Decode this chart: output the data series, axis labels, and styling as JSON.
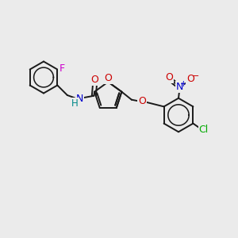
{
  "bg_color": "#ebebeb",
  "atom_colors": {
    "F": "#cc00cc",
    "N_amine": "#0000cc",
    "H": "#008888",
    "O": "#cc0000",
    "N_nitro": "#0000cc",
    "Cl": "#00aa00"
  },
  "bond_color": "#1a1a1a",
  "bond_lw": 1.4,
  "figsize": [
    3.0,
    3.0
  ],
  "dpi": 100
}
